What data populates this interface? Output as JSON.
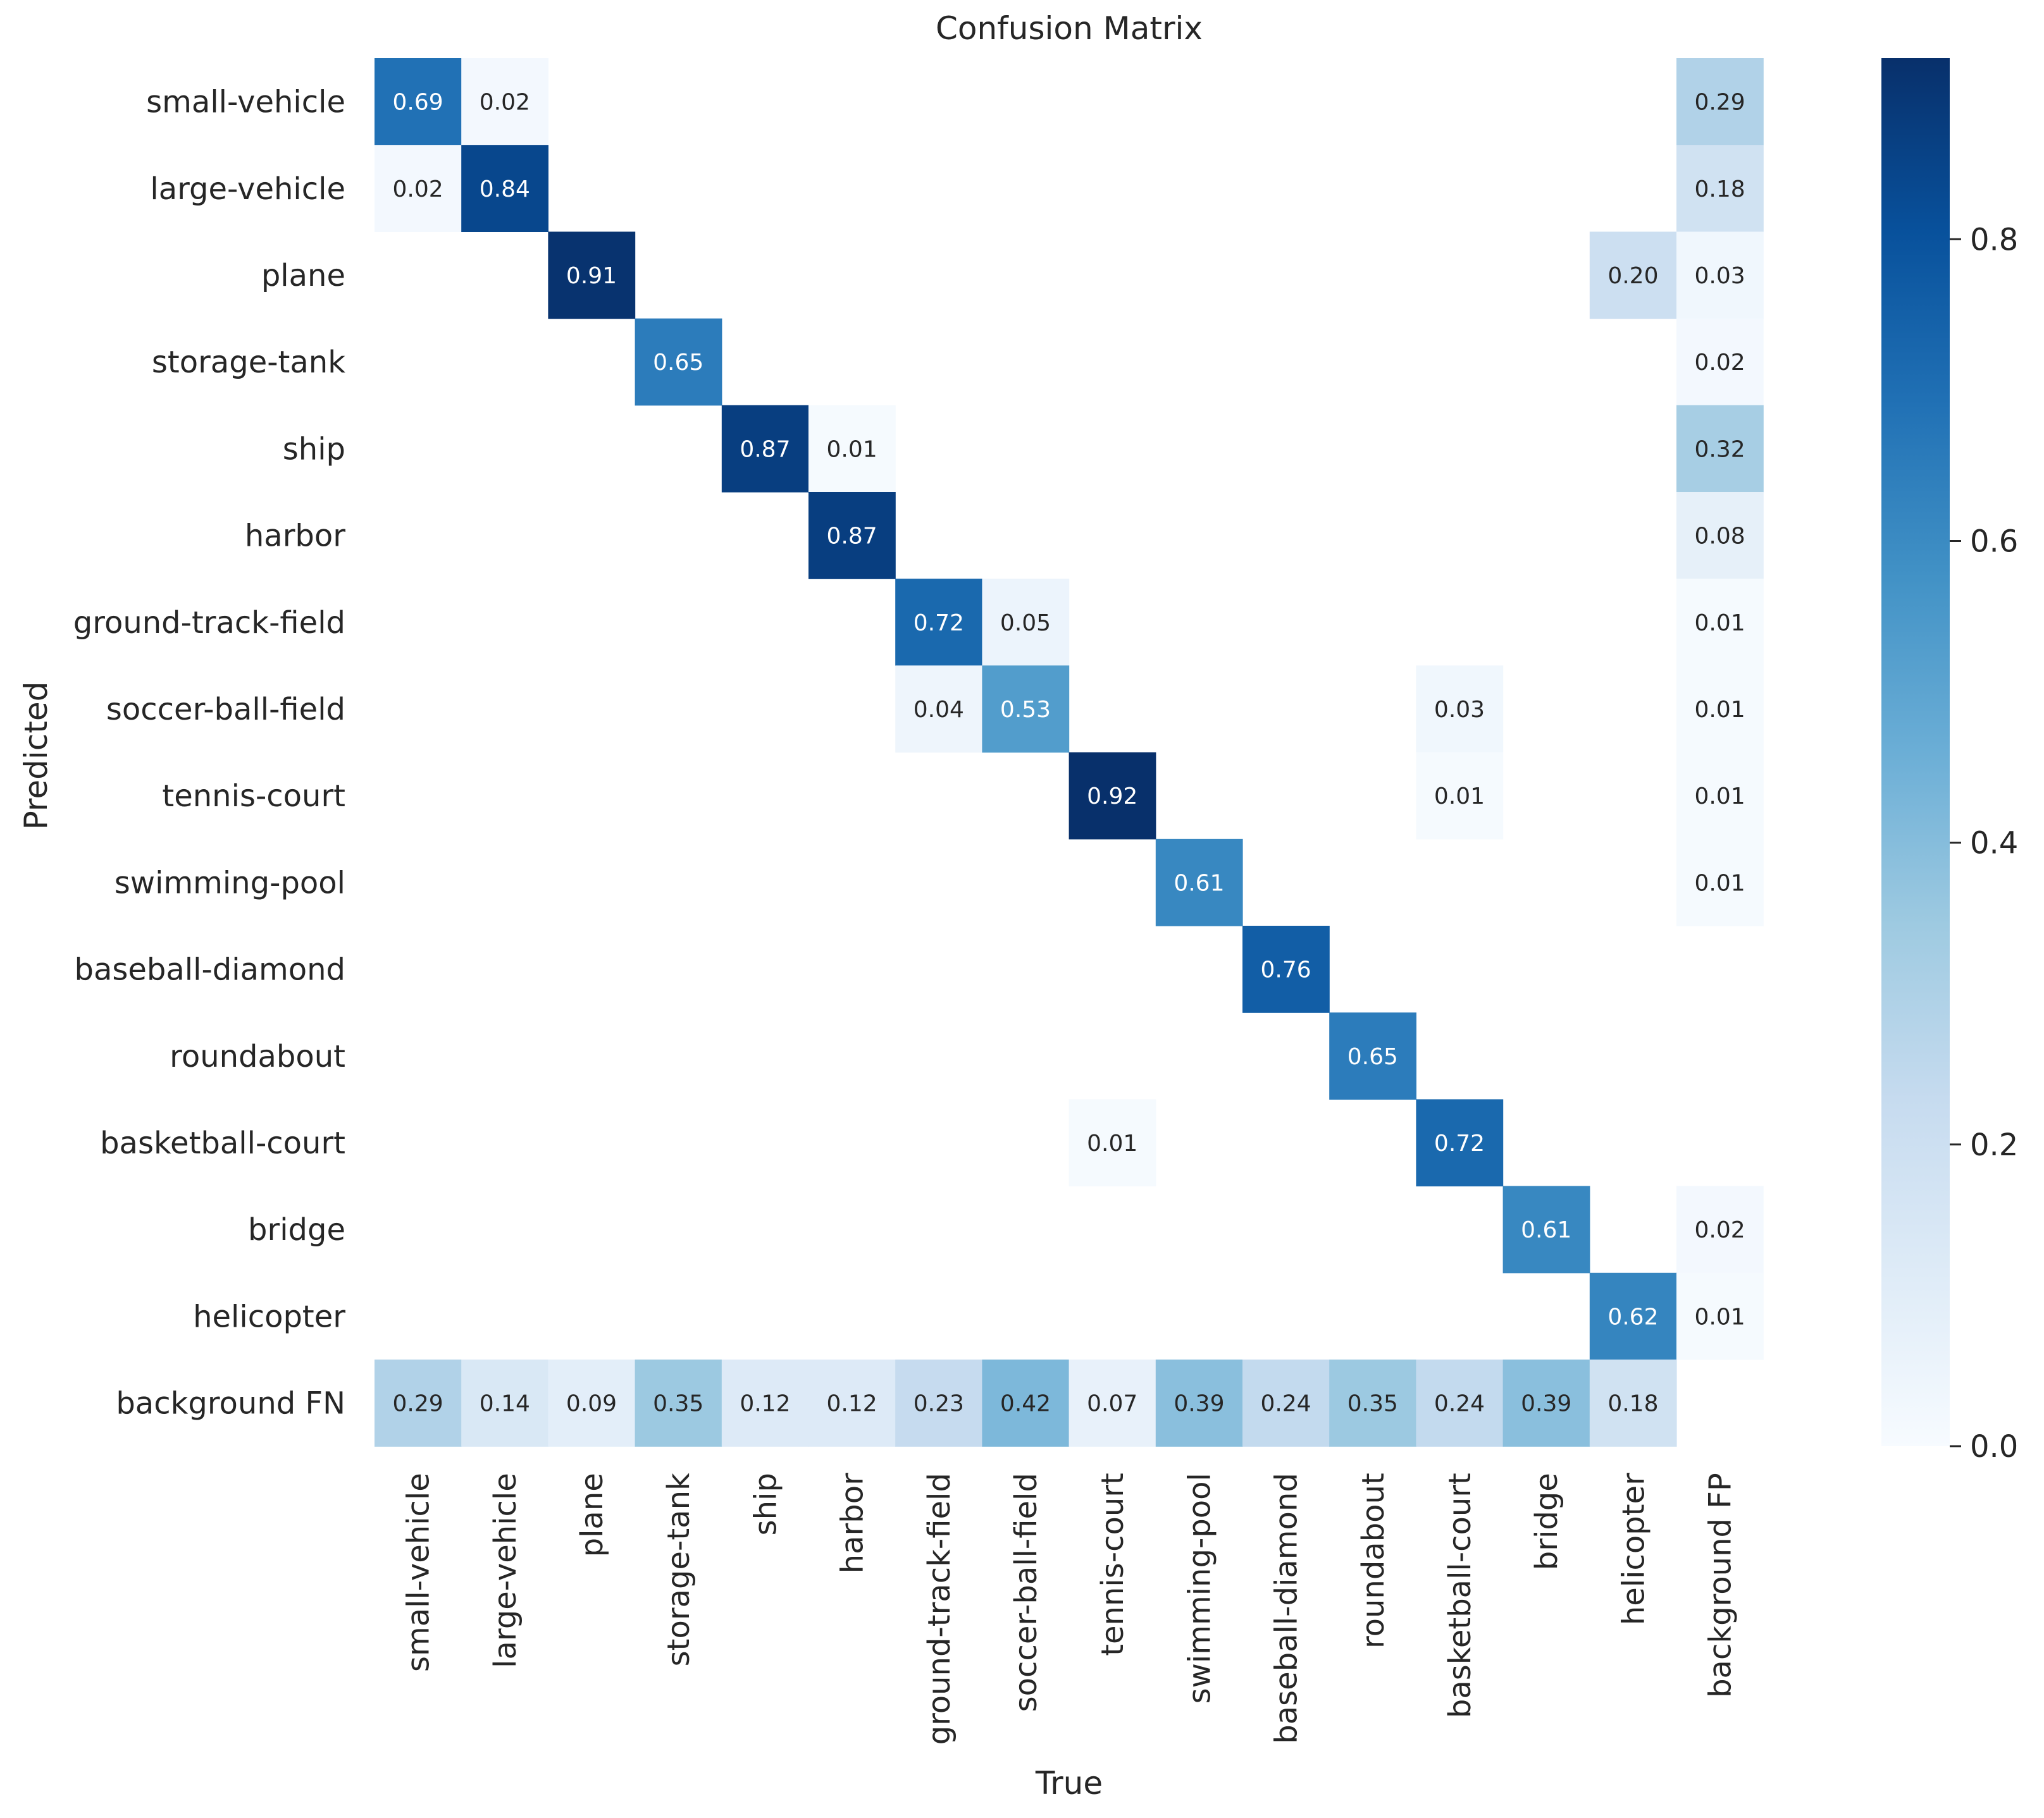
{
  "chart_data": {
    "type": "heatmap",
    "title": "Confusion Matrix",
    "xlabel": "True",
    "ylabel": "Predicted",
    "x_categories": [
      "small-vehicle",
      "large-vehicle",
      "plane",
      "storage-tank",
      "ship",
      "harbor",
      "ground-track-field",
      "soccer-ball-field",
      "tennis-court",
      "swimming-pool",
      "baseball-diamond",
      "roundabout",
      "basketball-court",
      "bridge",
      "helicopter",
      "background FP"
    ],
    "y_categories": [
      "small-vehicle",
      "large-vehicle",
      "plane",
      "storage-tank",
      "ship",
      "harbor",
      "ground-track-field",
      "soccer-ball-field",
      "tennis-court",
      "swimming-pool",
      "baseball-diamond",
      "roundabout",
      "basketball-court",
      "bridge",
      "helicopter",
      "background FN"
    ],
    "matrix": [
      [
        "0.69",
        "0.02",
        null,
        null,
        null,
        null,
        null,
        null,
        null,
        null,
        null,
        null,
        null,
        null,
        null,
        "0.29"
      ],
      [
        "0.02",
        "0.84",
        null,
        null,
        null,
        null,
        null,
        null,
        null,
        null,
        null,
        null,
        null,
        null,
        null,
        "0.18"
      ],
      [
        null,
        null,
        "0.91",
        null,
        null,
        null,
        null,
        null,
        null,
        null,
        null,
        null,
        null,
        null,
        "0.20",
        "0.03"
      ],
      [
        null,
        null,
        null,
        "0.65",
        null,
        null,
        null,
        null,
        null,
        null,
        null,
        null,
        null,
        null,
        null,
        "0.02"
      ],
      [
        null,
        null,
        null,
        null,
        "0.87",
        "0.01",
        null,
        null,
        null,
        null,
        null,
        null,
        null,
        null,
        null,
        "0.32"
      ],
      [
        null,
        null,
        null,
        null,
        null,
        "0.87",
        null,
        null,
        null,
        null,
        null,
        null,
        null,
        null,
        null,
        "0.08"
      ],
      [
        null,
        null,
        null,
        null,
        null,
        null,
        "0.72",
        "0.05",
        null,
        null,
        null,
        null,
        null,
        null,
        null,
        "0.01"
      ],
      [
        null,
        null,
        null,
        null,
        null,
        null,
        "0.04",
        "0.53",
        null,
        null,
        null,
        null,
        "0.03",
        null,
        null,
        "0.01"
      ],
      [
        null,
        null,
        null,
        null,
        null,
        null,
        null,
        null,
        "0.92",
        null,
        null,
        null,
        "0.01",
        null,
        null,
        "0.01"
      ],
      [
        null,
        null,
        null,
        null,
        null,
        null,
        null,
        null,
        null,
        "0.61",
        null,
        null,
        null,
        null,
        null,
        "0.01"
      ],
      [
        null,
        null,
        null,
        null,
        null,
        null,
        null,
        null,
        null,
        null,
        "0.76",
        null,
        null,
        null,
        null,
        null
      ],
      [
        null,
        null,
        null,
        null,
        null,
        null,
        null,
        null,
        null,
        null,
        null,
        "0.65",
        null,
        null,
        null,
        null
      ],
      [
        null,
        null,
        null,
        null,
        null,
        null,
        null,
        null,
        "0.01",
        null,
        null,
        null,
        "0.72",
        null,
        null,
        null
      ],
      [
        null,
        null,
        null,
        null,
        null,
        null,
        null,
        null,
        null,
        null,
        null,
        null,
        null,
        "0.61",
        null,
        "0.02"
      ],
      [
        null,
        null,
        null,
        null,
        null,
        null,
        null,
        null,
        null,
        null,
        null,
        null,
        null,
        null,
        "0.62",
        "0.01"
      ],
      [
        "0.29",
        "0.14",
        "0.09",
        "0.35",
        "0.12",
        "0.12",
        "0.23",
        "0.42",
        "0.07",
        "0.39",
        "0.24",
        "0.35",
        "0.24",
        "0.39",
        "0.18",
        null
      ]
    ],
    "colorbar": {
      "range": [
        0,
        0.92
      ],
      "ticks": [
        "0.0",
        "0.2",
        "0.4",
        "0.6",
        "0.8"
      ],
      "colormap": "Blues",
      "color_stops": [
        "#f7fbff",
        "#deebf7",
        "#c6dbef",
        "#9ecae1",
        "#6baed6",
        "#4292c6",
        "#2171b5",
        "#08519c",
        "#08306b"
      ]
    },
    "legend": "right"
  }
}
